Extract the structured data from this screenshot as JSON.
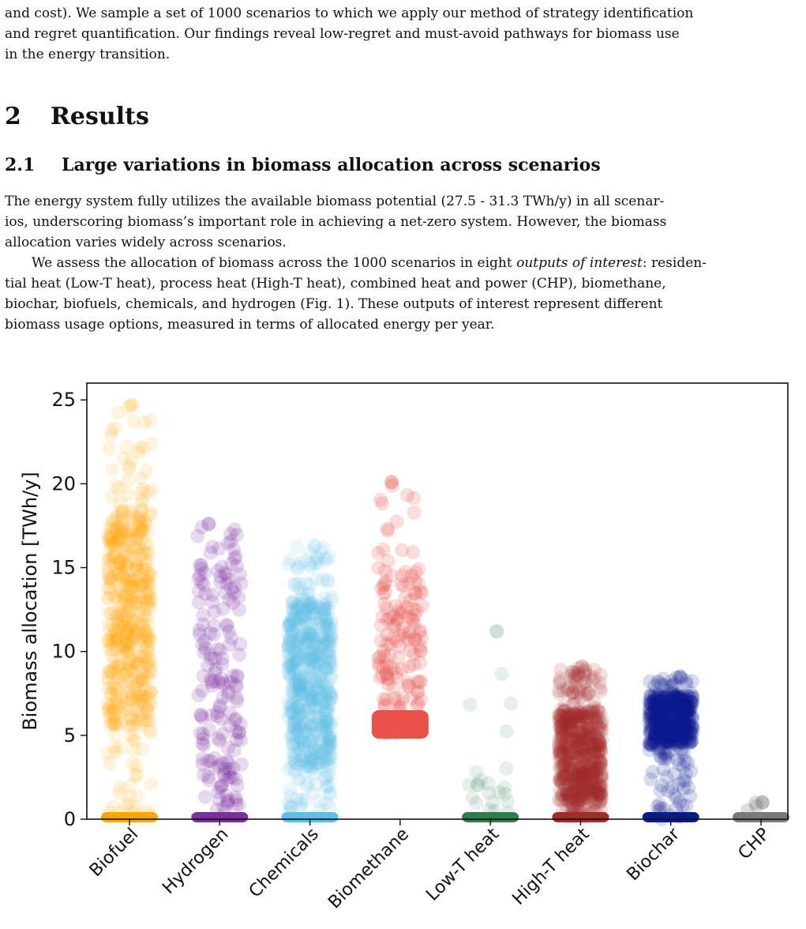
{
  "intro": {
    "p_tail_1": "and cost). We sample a set of 1000 scenarios to which we apply our method of strategy identification",
    "p_tail_2": "and regret quantification. Our findings reveal low-regret and must-avoid pathways for biomass use",
    "p_tail_3": "in the energy transition."
  },
  "section": {
    "number": "2",
    "title": "Results"
  },
  "subsection": {
    "number": "2.1",
    "title": "Large variations in biomass allocation across scenarios"
  },
  "body": {
    "p1_l1": "The energy system fully utilizes the available biomass potential (27.5 - 31.3 TWh/y) in all scenar-",
    "p1_l2": "ios, underscoring biomass’s important role in achieving a net-zero system. However, the biomass",
    "p1_l3": "allocation varies widely across scenarios.",
    "p2_l1a": "We assess the allocation of biomass across the 1000 scenarios in eight ",
    "p2_l1b": "outputs of interest",
    "p2_l1c": ": residen-",
    "p2_l2": "tial heat (Low-T heat), process heat (High-T heat), combined heat and power (CHP), biomethane,",
    "p2_l3": "biochar, biofuels, chemicals, and hydrogen (Fig. 1). These outputs of interest represent different",
    "p2_l4": "biomass usage options, measured in terms of allocated energy per year."
  },
  "chart_data": {
    "type": "scatter",
    "title": "",
    "xlabel": "",
    "ylabel": "Biomass allocation [TWh/y]",
    "ylim": [
      0,
      26
    ],
    "yticks": [
      "0",
      "5",
      "10",
      "15",
      "20",
      "25"
    ],
    "grid": false,
    "categories": [
      "Biofuel",
      "Hydrogen",
      "Chemicals",
      "Biomethane",
      "Low-T heat",
      "High-T heat",
      "Biochar",
      "CHP"
    ],
    "series": [
      {
        "category": "Biofuel",
        "color": "#FFA500",
        "alpha": 0.12,
        "count": 520,
        "min": 0,
        "max": 24.7,
        "dense": [
          5.5,
          18.5
        ],
        "zero_band": true
      },
      {
        "category": "Hydrogen",
        "color": "#7B2F9E",
        "alpha": 0.18,
        "count": 170,
        "min": 0,
        "max": 17.6,
        "dense": [
          0.5,
          17.0
        ],
        "zero_band": true
      },
      {
        "category": "Chemicals",
        "color": "#5BC0E6",
        "alpha": 0.12,
        "count": 620,
        "min": 0,
        "max": 16.3,
        "dense": [
          3.0,
          13.0
        ],
        "zero_band": true
      },
      {
        "category": "Biomethane",
        "color": "#E8524A",
        "alpha": 0.2,
        "count": 140,
        "min": 4.8,
        "max": 20.1,
        "dense": [
          6.5,
          15.0
        ],
        "solid_band": [
          4.8,
          6.5
        ],
        "zero_band": false
      },
      {
        "category": "Low-T heat",
        "color": "#2E7D4F",
        "alpha": 0.12,
        "count": 22,
        "min": 0,
        "max": 11.2,
        "dense": [
          0.3,
          3.2
        ],
        "zero_band": true
      },
      {
        "category": "High-T heat",
        "color": "#A52A2A",
        "alpha": 0.14,
        "count": 600,
        "min": 0,
        "max": 9.1,
        "dense": [
          1.0,
          6.5
        ],
        "zero_band": true
      },
      {
        "category": "Biochar",
        "color": "#0A1A8C",
        "alpha": 0.16,
        "count": 500,
        "min": 0,
        "max": 8.5,
        "dense": [
          4.5,
          7.5
        ],
        "zero_band": true
      },
      {
        "category": "CHP",
        "color": "#7A7A7A",
        "alpha": 0.25,
        "count": 3,
        "min": 0,
        "max": 1.0,
        "dense": [
          0.3,
          1.0
        ],
        "zero_band": true
      }
    ]
  }
}
